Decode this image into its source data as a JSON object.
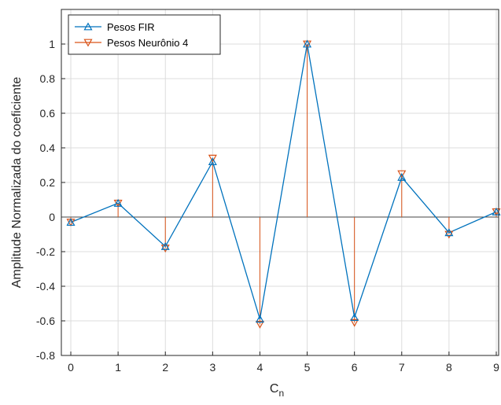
{
  "chart_data": {
    "type": "line",
    "xlabel": "C",
    "xlabel_sub": "n",
    "ylabel": "Amplitude Normalizada do coeficiente",
    "x": [
      0,
      1,
      2,
      3,
      4,
      5,
      6,
      7,
      8,
      9
    ],
    "xlim": [
      -0.2,
      9.05
    ],
    "ylim": [
      -0.8,
      1.2
    ],
    "xticks": [
      "0",
      "1",
      "2",
      "3",
      "4",
      "5",
      "6",
      "7",
      "8",
      "9"
    ],
    "yticks": [
      "-0.8",
      "-0.6",
      "-0.4",
      "-0.2",
      "0",
      "0.2",
      "0.4",
      "0.6",
      "0.8",
      "1"
    ],
    "ytick_values": [
      -0.8,
      -0.6,
      -0.4,
      -0.2,
      0,
      0.2,
      0.4,
      0.6,
      0.8,
      1
    ],
    "grid": true,
    "legend_position": "top-left",
    "series": [
      {
        "name": "Pesos FIR",
        "style": "line with upward triangle markers",
        "color": "#0072BD",
        "values": [
          -0.03,
          0.08,
          -0.17,
          0.32,
          -0.59,
          1.0,
          -0.58,
          0.23,
          -0.09,
          0.03
        ]
      },
      {
        "name": "Pesos Neurônio 4",
        "style": "stem with downward triangle markers",
        "color": "#D95319",
        "values": [
          -0.03,
          0.08,
          -0.18,
          0.34,
          -0.62,
          1.0,
          -0.61,
          0.25,
          -0.1,
          0.03
        ]
      }
    ]
  }
}
